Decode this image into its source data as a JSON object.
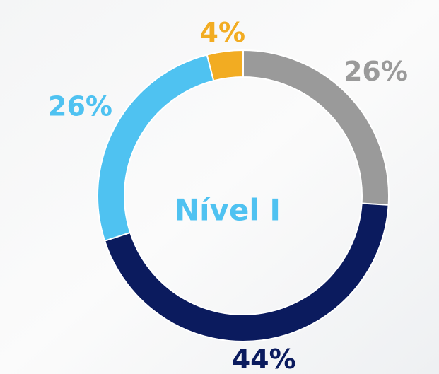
{
  "chart_data": {
    "type": "pie",
    "donut": true,
    "center_label": "Nível I",
    "values": [
      26,
      44,
      26,
      4
    ],
    "value_labels": [
      "26%",
      "44%",
      "26%",
      "4%"
    ],
    "colors": [
      "#9a9a9a",
      "#0b1b5e",
      "#4fc2f1",
      "#f2ac22"
    ]
  }
}
